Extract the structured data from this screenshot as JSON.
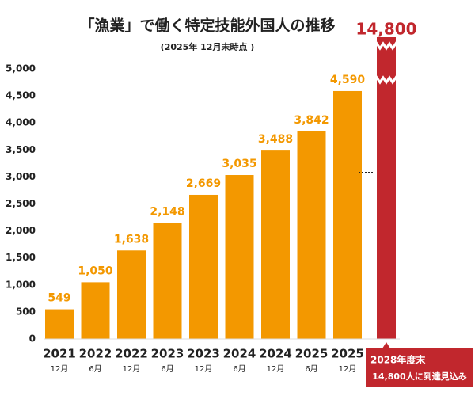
{
  "chart_data": {
    "type": "bar",
    "title": "「漁業」で働く特定技能外国人の推移",
    "subtitle": "(2025年 12月末時点 )",
    "categories": [
      "2021",
      "2022",
      "2022",
      "2023",
      "2023",
      "2024",
      "2024",
      "2025",
      "2025"
    ],
    "category_sublabels": [
      "12月",
      "6月",
      "12月",
      "6月",
      "12月",
      "6月",
      "12月",
      "6月",
      "12月"
    ],
    "values": [
      549,
      1050,
      1638,
      2148,
      2669,
      3035,
      3488,
      3842,
      4590
    ],
    "value_labels": [
      "549",
      "1,050",
      "1,638",
      "2,148",
      "2,669",
      "3,035",
      "3,488",
      "3,842",
      "4,590"
    ],
    "color": "#f39800",
    "ylim": [
      0,
      5000
    ],
    "yticks": [
      0,
      500,
      {
        "value": 1000,
        "label": "1,000"
      },
      {
        "value": 1500,
        "label": "1,500"
      },
      {
        "value": 2000,
        "label": "2,000"
      },
      {
        "value": 2500,
        "label": "2,500"
      },
      {
        "value": 3000,
        "label": "3,000"
      },
      {
        "value": 3500,
        "label": "3,500"
      },
      {
        "value": 4000,
        "label": "4,000"
      },
      {
        "value": 4500,
        "label": "4,500"
      },
      {
        "value": 5000,
        "label": "5,000"
      }
    ],
    "target": {
      "value": 14800,
      "label": "14,800",
      "color": "#c1272d",
      "axis_break": true,
      "note": [
        "2028年度末",
        "14,800人に到達見込み"
      ]
    }
  }
}
